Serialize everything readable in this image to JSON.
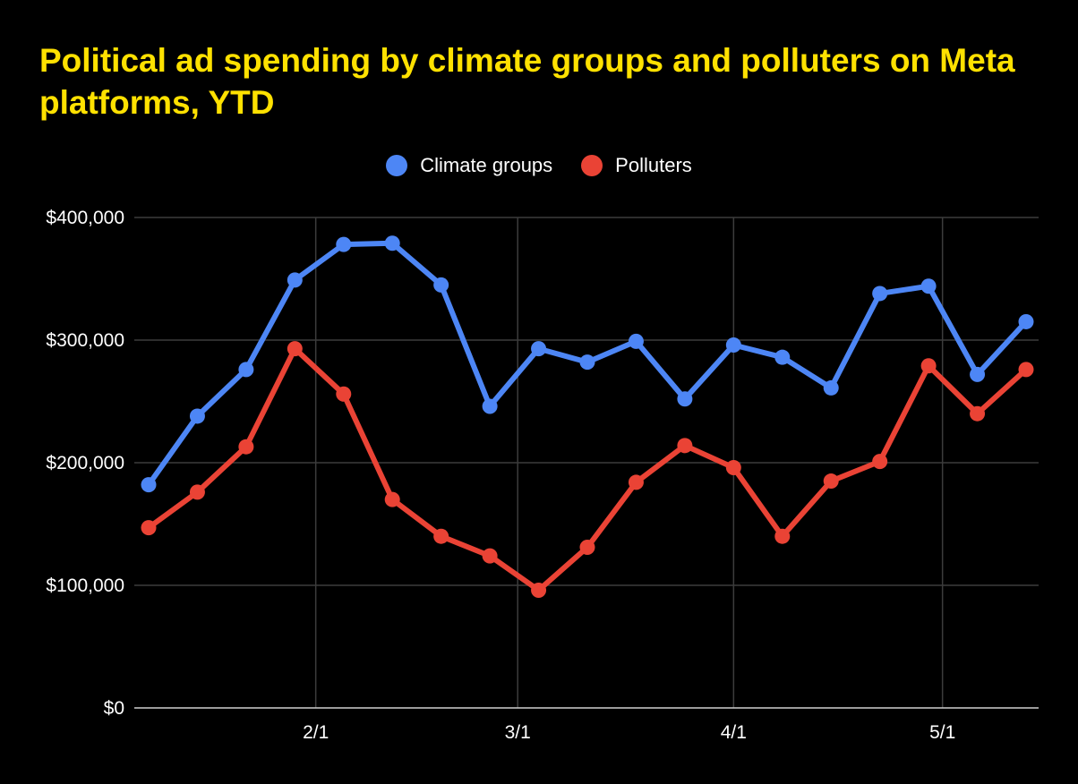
{
  "page": {
    "background": "#000000"
  },
  "chart_data": {
    "type": "line",
    "title": "Political ad spending by climate groups and polluters on Meta platforms, YTD",
    "title_color": "#ffe100",
    "xlabel": "",
    "ylabel": "",
    "x": [
      "1/8",
      "1/15",
      "1/22",
      "1/29",
      "2/5",
      "2/12",
      "2/19",
      "2/26",
      "3/4",
      "3/11",
      "3/18",
      "3/25",
      "4/1",
      "4/8",
      "4/15",
      "4/22",
      "4/29",
      "5/6",
      "5/13"
    ],
    "x_ticks": [
      "2/1",
      "3/1",
      "4/1",
      "5/1"
    ],
    "y_ticks": [
      "$0",
      "$100,000",
      "$200,000",
      "$300,000",
      "$400,000"
    ],
    "y_tick_values": [
      0,
      100000,
      200000,
      300000,
      400000
    ],
    "ylim": [
      0,
      400000
    ],
    "grid": true,
    "legend_position": "top-center",
    "series": [
      {
        "name": "Climate groups",
        "color": "#4d86f5",
        "values": [
          182000,
          238000,
          276000,
          349000,
          378000,
          379000,
          345000,
          246000,
          293000,
          282000,
          299000,
          252000,
          296000,
          286000,
          261000,
          338000,
          344000,
          272000,
          315000
        ]
      },
      {
        "name": "Polluters",
        "color": "#ea4335",
        "values": [
          147000,
          176000,
          213000,
          293000,
          256000,
          170000,
          140000,
          124000,
          96000,
          131000,
          184000,
          214000,
          196000,
          140000,
          185000,
          201000,
          279000,
          240000,
          276000
        ]
      }
    ]
  }
}
